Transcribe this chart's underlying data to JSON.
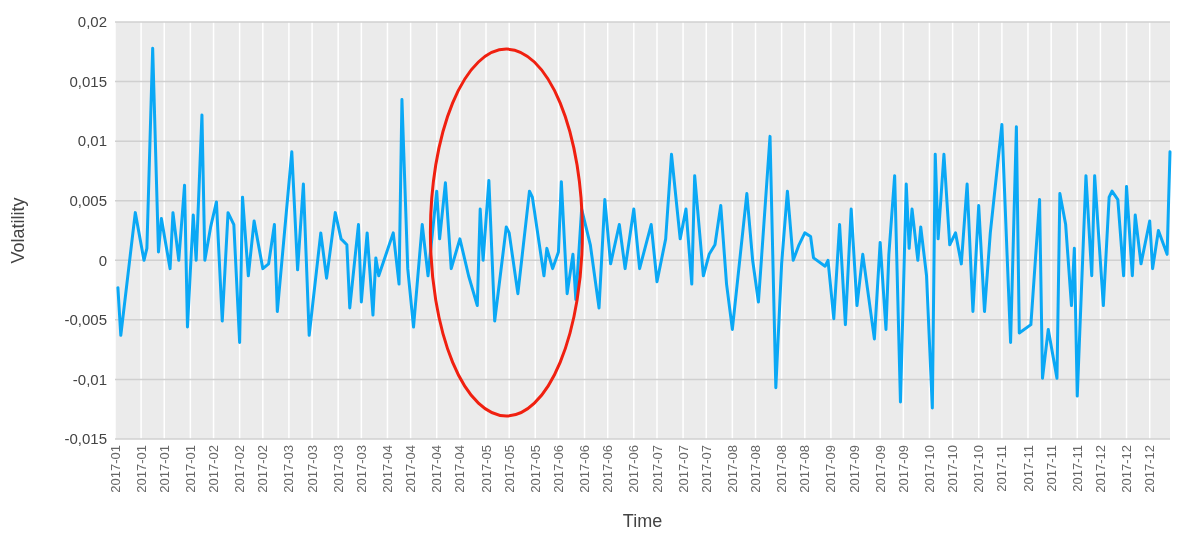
{
  "chart_data": {
    "type": "line",
    "xlabel": "Time",
    "ylabel": "Volatility",
    "grid": true,
    "marker": "none",
    "line_style": "solid",
    "xlim": [
      "2017-01-01",
      "2017-12-31"
    ],
    "xticks": [
      {
        "value": "2017-01-01",
        "label": "2017-01"
      },
      {
        "value": "2017-01-10",
        "label": "2017-01"
      },
      {
        "value": "2017-01-18",
        "label": "2017-01"
      },
      {
        "value": "2017-01-27",
        "label": "2017-01"
      },
      {
        "value": "2017-02-04",
        "label": "2017-02"
      },
      {
        "value": "2017-02-13",
        "label": "2017-02"
      },
      {
        "value": "2017-02-21",
        "label": "2017-02"
      },
      {
        "value": "2017-03-02",
        "label": "2017-03"
      },
      {
        "value": "2017-03-10",
        "label": "2017-03"
      },
      {
        "value": "2017-03-19",
        "label": "2017-03"
      },
      {
        "value": "2017-03-27",
        "label": "2017-03"
      },
      {
        "value": "2017-04-05",
        "label": "2017-04"
      },
      {
        "value": "2017-04-13",
        "label": "2017-04"
      },
      {
        "value": "2017-04-22",
        "label": "2017-04"
      },
      {
        "value": "2017-04-30",
        "label": "2017-04"
      },
      {
        "value": "2017-05-09",
        "label": "2017-05"
      },
      {
        "value": "2017-05-17",
        "label": "2017-05"
      },
      {
        "value": "2017-05-26",
        "label": "2017-05"
      },
      {
        "value": "2017-06-03",
        "label": "2017-06"
      },
      {
        "value": "2017-06-12",
        "label": "2017-06"
      },
      {
        "value": "2017-06-20",
        "label": "2017-06"
      },
      {
        "value": "2017-06-29",
        "label": "2017-06"
      },
      {
        "value": "2017-07-07",
        "label": "2017-07"
      },
      {
        "value": "2017-07-16",
        "label": "2017-07"
      },
      {
        "value": "2017-07-24",
        "label": "2017-07"
      },
      {
        "value": "2017-08-02",
        "label": "2017-08"
      },
      {
        "value": "2017-08-10",
        "label": "2017-08"
      },
      {
        "value": "2017-08-19",
        "label": "2017-08"
      },
      {
        "value": "2017-08-27",
        "label": "2017-08"
      },
      {
        "value": "2017-09-05",
        "label": "2017-09"
      },
      {
        "value": "2017-09-13",
        "label": "2017-09"
      },
      {
        "value": "2017-09-22",
        "label": "2017-09"
      },
      {
        "value": "2017-09-30",
        "label": "2017-09"
      },
      {
        "value": "2017-10-09",
        "label": "2017-10"
      },
      {
        "value": "2017-10-17",
        "label": "2017-10"
      },
      {
        "value": "2017-10-26",
        "label": "2017-10"
      },
      {
        "value": "2017-11-03",
        "label": "2017-11"
      },
      {
        "value": "2017-11-12",
        "label": "2017-11"
      },
      {
        "value": "2017-11-20",
        "label": "2017-11"
      },
      {
        "value": "2017-11-29",
        "label": "2017-11"
      },
      {
        "value": "2017-12-07",
        "label": "2017-12"
      },
      {
        "value": "2017-12-16",
        "label": "2017-12"
      },
      {
        "value": "2017-12-24",
        "label": "2017-12"
      }
    ],
    "ylim": [
      -0.015,
      0.02
    ],
    "yticks": [
      {
        "value": -0.015,
        "label": "-0,015"
      },
      {
        "value": -0.01,
        "label": "-0,01"
      },
      {
        "value": -0.005,
        "label": "-0,005"
      },
      0,
      {
        "value": 0.005,
        "label": "0,005"
      },
      {
        "value": 0.01,
        "label": "0,01"
      },
      {
        "value": 0.015,
        "label": "0,015"
      },
      {
        "value": 0.02,
        "label": "0,02"
      }
    ],
    "x": [
      "2017-01-02",
      "2017-01-03",
      "2017-01-08",
      "2017-01-11",
      "2017-01-12",
      "2017-01-14",
      "2017-01-16",
      "2017-01-17",
      "2017-01-20",
      "2017-01-21",
      "2017-01-23",
      "2017-01-25",
      "2017-01-26",
      "2017-01-28",
      "2017-01-29",
      "2017-01-31",
      "2017-02-01",
      "2017-02-03",
      "2017-02-05",
      "2017-02-07",
      "2017-02-09",
      "2017-02-11",
      "2017-02-13",
      "2017-02-14",
      "2017-02-16",
      "2017-02-18",
      "2017-02-21",
      "2017-02-23",
      "2017-02-25",
      "2017-02-26",
      "2017-03-03",
      "2017-03-05",
      "2017-03-07",
      "2017-03-09",
      "2017-03-13",
      "2017-03-15",
      "2017-03-18",
      "2017-03-20",
      "2017-03-22",
      "2017-03-23",
      "2017-03-26",
      "2017-03-27",
      "2017-03-29",
      "2017-03-31",
      "2017-04-01",
      "2017-04-02",
      "2017-04-07",
      "2017-04-09",
      "2017-04-10",
      "2017-04-12",
      "2017-04-14",
      "2017-04-17",
      "2017-04-19",
      "2017-04-22",
      "2017-04-23",
      "2017-04-25",
      "2017-04-27",
      "2017-04-30",
      "2017-05-03",
      "2017-05-06",
      "2017-05-07",
      "2017-05-08",
      "2017-05-10",
      "2017-05-12",
      "2017-05-16",
      "2017-05-17",
      "2017-05-20",
      "2017-05-24",
      "2017-05-25",
      "2017-05-29",
      "2017-05-30",
      "2017-06-01",
      "2017-06-03",
      "2017-06-04",
      "2017-06-06",
      "2017-06-08",
      "2017-06-09",
      "2017-06-11",
      "2017-06-14",
      "2017-06-17",
      "2017-06-19",
      "2017-06-21",
      "2017-06-24",
      "2017-06-26",
      "2017-06-29",
      "2017-07-01",
      "2017-07-05",
      "2017-07-07",
      "2017-07-10",
      "2017-07-12",
      "2017-07-15",
      "2017-07-17",
      "2017-07-19",
      "2017-07-20",
      "2017-07-23",
      "2017-07-25",
      "2017-07-27",
      "2017-07-29",
      "2017-07-31",
      "2017-08-02",
      "2017-08-07",
      "2017-08-09",
      "2017-08-11",
      "2017-08-15",
      "2017-08-17",
      "2017-08-19",
      "2017-08-21",
      "2017-08-23",
      "2017-08-25",
      "2017-08-27",
      "2017-08-29",
      "2017-08-30",
      "2017-09-03",
      "2017-09-04",
      "2017-09-06",
      "2017-09-08",
      "2017-09-10",
      "2017-09-12",
      "2017-09-14",
      "2017-09-16",
      "2017-09-20",
      "2017-09-22",
      "2017-09-24",
      "2017-09-25",
      "2017-09-27",
      "2017-09-29",
      "2017-10-01",
      "2017-10-02",
      "2017-10-03",
      "2017-10-05",
      "2017-10-06",
      "2017-10-08",
      "2017-10-10",
      "2017-10-11",
      "2017-10-12",
      "2017-10-14",
      "2017-10-16",
      "2017-10-18",
      "2017-10-20",
      "2017-10-22",
      "2017-10-24",
      "2017-10-26",
      "2017-10-28",
      "2017-10-30",
      "2017-11-03",
      "2017-11-06",
      "2017-11-08",
      "2017-11-09",
      "2017-11-13",
      "2017-11-16",
      "2017-11-17",
      "2017-11-19",
      "2017-11-22",
      "2017-11-23",
      "2017-11-25",
      "2017-11-27",
      "2017-11-28",
      "2017-11-29",
      "2017-12-02",
      "2017-12-04",
      "2017-12-05",
      "2017-12-08",
      "2017-12-10",
      "2017-12-11",
      "2017-12-13",
      "2017-12-15",
      "2017-12-16",
      "2017-12-18",
      "2017-12-19",
      "2017-12-21",
      "2017-12-24",
      "2017-12-25",
      "2017-12-27",
      "2017-12-30",
      "2017-12-31"
    ],
    "series": [
      {
        "color": "#0aa8f5",
        "values": [
          -0.0023,
          -0.0063,
          0.004,
          0,
          0.001,
          0.0178,
          0.0007,
          0.0035,
          -0.0007,
          0.004,
          0,
          0.0063,
          -0.0056,
          0.0038,
          0,
          0.0122,
          0,
          0.0028,
          0.0049,
          -0.0051,
          0.004,
          0.003,
          -0.0069,
          0.0053,
          -0.0013,
          0.0033,
          -0.0007,
          -0.0003,
          0.003,
          -0.0043,
          0.0091,
          -0.0008,
          0.0064,
          -0.0063,
          0.0023,
          -0.0015,
          0.004,
          0.0018,
          0.0013,
          -0.004,
          0.003,
          -0.0035,
          0.0023,
          -0.0046,
          0.0002,
          -0.0013,
          0.0023,
          -0.002,
          0.0135,
          -0.0007,
          -0.0056,
          0.003,
          -0.0013,
          0.0058,
          0.0018,
          0.0065,
          -0.0007,
          0.0018,
          -0.0013,
          -0.0038,
          0.0043,
          0,
          0.0067,
          -0.0051,
          0.0028,
          0.0023,
          -0.0028,
          0.0058,
          0.0053,
          -0.0013,
          0.001,
          -0.0007,
          0.0007,
          0.0066,
          -0.0028,
          0.0005,
          -0.0033,
          0.0043,
          0.0013,
          -0.004,
          0.0051,
          -0.0003,
          0.003,
          -0.0007,
          0.0043,
          -0.0007,
          0.003,
          -0.0018,
          0.0018,
          0.0089,
          0.0018,
          0.0043,
          -0.002,
          0.0071,
          -0.0013,
          0.0005,
          0.0013,
          0.0046,
          -0.002,
          -0.0058,
          0.0056,
          0,
          -0.0035,
          0.0104,
          -0.0107,
          -0.0003,
          0.0058,
          0,
          0.0013,
          0.0023,
          0.002,
          0.0002,
          -0.0005,
          0,
          -0.0049,
          0.003,
          -0.0054,
          0.0043,
          -0.0038,
          0.0005,
          -0.0066,
          0.0015,
          -0.0058,
          0.0005,
          0.0071,
          -0.0119,
          0.0064,
          0.001,
          0.0043,
          0,
          0.0028,
          -0.0013,
          -0.0124,
          0.0089,
          0.0018,
          0.0089,
          0.0013,
          0.0023,
          -0.0003,
          0.0064,
          -0.0043,
          0.0046,
          -0.0043,
          0.0023,
          0.0114,
          -0.0069,
          0.0112,
          -0.0061,
          -0.0054,
          0.0051,
          -0.0099,
          -0.0058,
          -0.0099,
          0.0056,
          0.003,
          -0.0038,
          0.001,
          -0.0114,
          0.0071,
          -0.0013,
          0.0071,
          -0.0038,
          0.0053,
          0.0058,
          0.0051,
          -0.0013,
          0.0062,
          -0.0013,
          0.0038,
          -0.0003,
          0.0033,
          -0.0007,
          0.0025,
          0.0005,
          0.0091
        ]
      }
    ]
  }
}
